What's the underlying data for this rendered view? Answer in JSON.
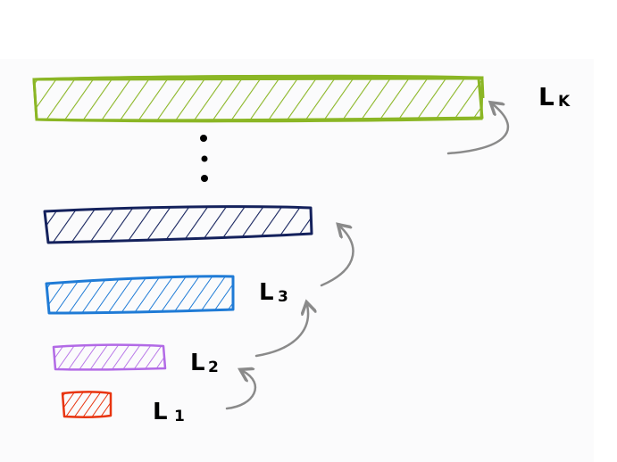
{
  "diagram": {
    "levels": [
      {
        "id": "L1",
        "letter": "L",
        "subscript": "1",
        "color": "#e8340f"
      },
      {
        "id": "L2",
        "letter": "L",
        "subscript": "2",
        "color": "#b26ae6"
      },
      {
        "id": "L3",
        "letter": "L",
        "subscript": "3",
        "color": "#1f7bd6"
      },
      {
        "id": "L4",
        "letter": "",
        "subscript": "",
        "color": "#14215c"
      },
      {
        "id": "Lk",
        "letter": "L",
        "subscript": "K",
        "color": "#8bb625"
      }
    ],
    "ellipsis_color": "#000000",
    "arrow_color": "#8a8a8a"
  }
}
